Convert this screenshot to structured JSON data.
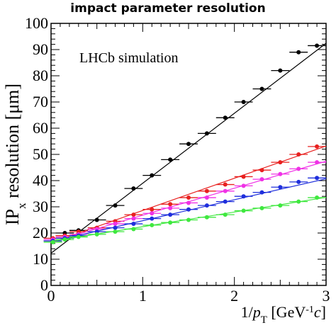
{
  "chart_data": {
    "type": "scatter",
    "title": "impact parameter resolution",
    "annotation": "LHCb simulation",
    "xlabel": {
      "prefix": "1/",
      "var": "p",
      "sub": "T",
      "unit_open": " [GeV",
      "unit_sup": "-1",
      "unit_var": "c",
      "unit_close": "]"
    },
    "ylabel": {
      "base": "IP",
      "sub": "x",
      "rest": " resolution [μm]"
    },
    "xlim": [
      0,
      3
    ],
    "ylim": [
      0,
      100
    ],
    "xticks": [
      0,
      1,
      2,
      3
    ],
    "yticks": [
      0,
      10,
      20,
      30,
      40,
      50,
      60,
      70,
      80,
      90,
      100
    ],
    "grid": false,
    "series": [
      {
        "color": "#000000",
        "fit": [
          12.3,
          26.7
        ],
        "x": [
          0.02,
          0.15,
          0.3,
          0.5,
          0.7,
          0.9,
          1.1,
          1.3,
          1.5,
          1.7,
          1.9,
          2.1,
          2.3,
          2.5,
          2.7,
          2.9
        ],
        "y": [
          17,
          20,
          21,
          25,
          30.5,
          37,
          42,
          48,
          54,
          58,
          64,
          70,
          75,
          82,
          89,
          91.5
        ]
      },
      {
        "color": "#e8201f",
        "fit": [
          16.3,
          12.3
        ],
        "x": [
          0.02,
          0.15,
          0.3,
          0.5,
          0.7,
          0.9,
          1.1,
          1.3,
          1.5,
          1.7,
          1.9,
          2.1,
          2.3,
          2.5,
          2.7,
          2.9
        ],
        "y": [
          18,
          19,
          20.5,
          22,
          24.5,
          27,
          29,
          31,
          33.5,
          36,
          38.5,
          41.5,
          44,
          47,
          50,
          53
        ]
      },
      {
        "color": "#f032e6",
        "fit": [
          16.5,
          10.3
        ],
        "x": [
          0.02,
          0.15,
          0.3,
          0.5,
          0.7,
          0.9,
          1.1,
          1.3,
          1.5,
          1.7,
          1.9,
          2.1,
          2.3,
          2.5,
          2.7,
          2.9
        ],
        "y": [
          17.5,
          18.5,
          19.5,
          21.5,
          23.5,
          25.5,
          27.5,
          29.5,
          31.5,
          33.5,
          36,
          38,
          40.5,
          42.5,
          44.5,
          47
        ]
      },
      {
        "color": "#1f2fdc",
        "fit": [
          16.7,
          8.0
        ],
        "x": [
          0.02,
          0.15,
          0.3,
          0.5,
          0.7,
          0.9,
          1.1,
          1.3,
          1.5,
          1.7,
          1.9,
          2.1,
          2.3,
          2.5,
          2.7,
          2.9
        ],
        "y": [
          17,
          18,
          19,
          20.5,
          22,
          23.5,
          25.5,
          27,
          29,
          30.5,
          32,
          34,
          35.5,
          37.5,
          39.5,
          41
        ]
      },
      {
        "color": "#3fe83f",
        "fit": [
          16.8,
          5.6
        ],
        "x": [
          0.02,
          0.15,
          0.3,
          0.5,
          0.7,
          0.9,
          1.1,
          1.3,
          1.5,
          1.7,
          1.9,
          2.1,
          2.3,
          2.5,
          2.7,
          2.9
        ],
        "y": [
          16.5,
          17.5,
          18.5,
          19.5,
          20.5,
          21.5,
          23,
          24,
          25,
          26,
          27,
          28.5,
          29.5,
          30.5,
          32,
          33.5
        ]
      }
    ]
  }
}
